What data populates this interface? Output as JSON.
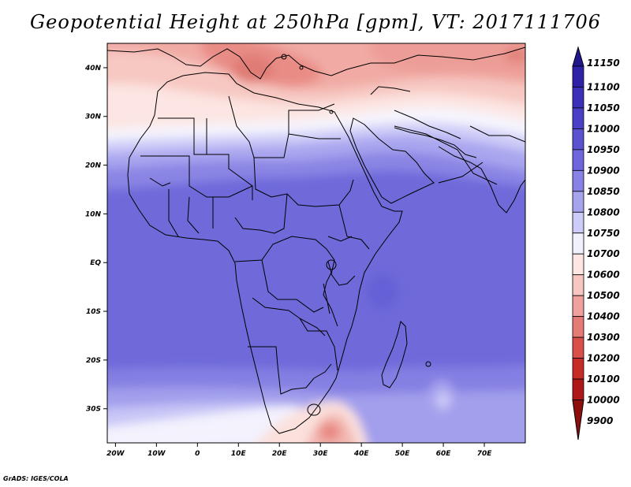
{
  "title": "Geopotential Height at 250hPa [gpm], VT: 2017111706",
  "footer": "GrADS: IGES/COLA",
  "map": {
    "lon_range": [
      -22,
      80
    ],
    "lat_range": [
      -37,
      45
    ],
    "x_ticks": [
      "20W",
      "10W",
      "0",
      "10E",
      "20E",
      "30E",
      "40E",
      "50E",
      "60E",
      "70E"
    ],
    "y_ticks": [
      "40N",
      "30N",
      "20N",
      "10N",
      "EQ",
      "10S",
      "20S",
      "30S"
    ],
    "variable": "geopotential height",
    "level": "250hPa",
    "units": "gpm",
    "valid_time": "2017111706"
  },
  "colorbar": {
    "levels": [
      "11150",
      "11100",
      "11050",
      "11000",
      "10950",
      "10900",
      "10850",
      "10800",
      "10750",
      "10700",
      "10600",
      "10500",
      "10400",
      "10300",
      "10200",
      "10100",
      "10000",
      "9900"
    ],
    "colors": [
      "#21188e",
      "#3022a6",
      "#3c30b8",
      "#4a40c6",
      "#5b52d2",
      "#6d66dc",
      "#8782e6",
      "#a7a4ee",
      "#cdcbf7",
      "#f1f1fd",
      "#fde6e3",
      "#f8c6c1",
      "#f0a19c",
      "#e57b76",
      "#d9504b",
      "#c72b27",
      "#ae1818",
      "#8e0e0e"
    ]
  }
}
